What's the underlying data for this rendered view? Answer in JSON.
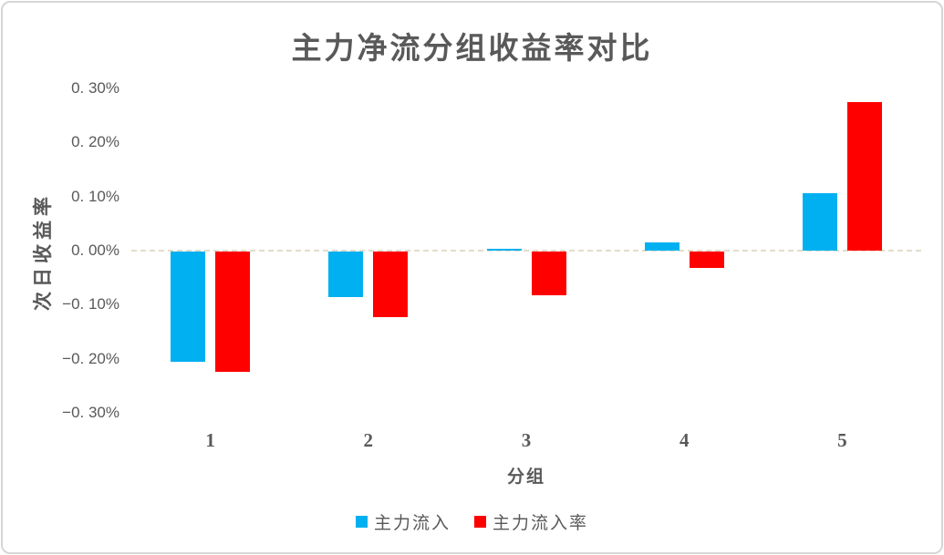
{
  "colors": {
    "series_blue": "#00B0F0",
    "series_red": "#FF0000",
    "text": "#595959",
    "frame_border": "#D6D6D6",
    "zero_line": "#E2DCCB",
    "background": "#FFFFFF"
  },
  "chart_data": {
    "type": "bar",
    "title": "主力净流分组收益率对比",
    "xlabel": "分组",
    "ylabel": "次日收益率",
    "categories": [
      "1",
      "2",
      "3",
      "4",
      "5"
    ],
    "series": [
      {
        "name": "主力流入",
        "color": "#00B0F0",
        "values_pct": [
          -0.204,
          -0.084,
          0.003,
          0.015,
          0.107
        ]
      },
      {
        "name": "主力流入率",
        "color": "#FF0000",
        "values_pct": [
          -0.222,
          -0.122,
          -0.081,
          -0.03,
          0.274
        ]
      }
    ],
    "ylim_pct": [
      -0.3,
      0.3
    ],
    "ytick_step_pct": 0.1,
    "ytick_labels": [
      "0. 30%",
      "0. 20%",
      "0. 10%",
      "0. 00%",
      "−0. 10%",
      "−0. 20%",
      "−0. 30%"
    ],
    "grid": "horizontal zero-line only, dashed",
    "legend_position": "bottom-center",
    "bar_orientation": "vertical, grouped pairs"
  }
}
